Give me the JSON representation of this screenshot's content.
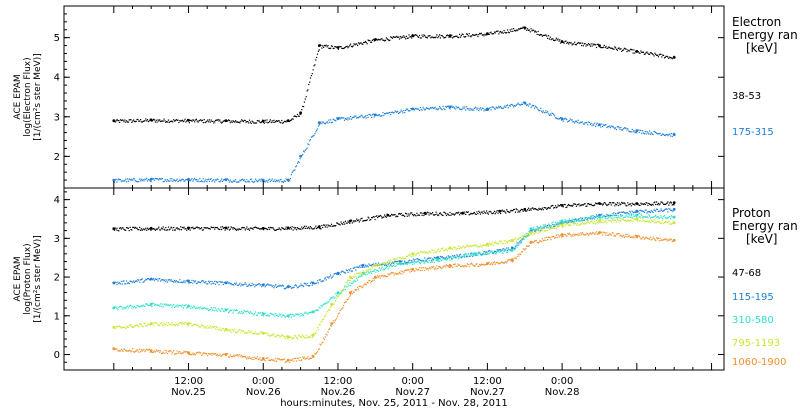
{
  "chart_data": [
    {
      "type": "scatter",
      "panel": "electron",
      "ylabel_lines": [
        "ACE EPAM",
        "log(Electron Flux)",
        "[1/(cm²s ster MeV)]"
      ],
      "y_ticks": [
        "2",
        "3",
        "4",
        "5"
      ],
      "ylim": [
        1.2,
        5.8
      ],
      "legend": {
        "title_lines": [
          "Electron",
          "Energy ran",
          "[keV]"
        ],
        "placement": "right"
      },
      "series": [
        {
          "name": "38-53",
          "color": "#000000",
          "x_hours": [
            0,
            6,
            12,
            18,
            24,
            28,
            30,
            33,
            36,
            42,
            48,
            54,
            60,
            66,
            72,
            78,
            84,
            90
          ],
          "values": [
            2.9,
            2.92,
            2.91,
            2.9,
            2.89,
            2.9,
            3.1,
            4.8,
            4.75,
            4.95,
            5.05,
            5.05,
            5.1,
            5.25,
            4.9,
            4.8,
            4.65,
            4.5
          ]
        },
        {
          "name": "175-315",
          "color": "#1e7fd6",
          "x_hours": [
            0,
            6,
            12,
            18,
            24,
            28,
            30,
            33,
            36,
            42,
            48,
            54,
            60,
            66,
            72,
            78,
            84,
            90
          ],
          "values": [
            1.4,
            1.42,
            1.42,
            1.41,
            1.4,
            1.4,
            2.0,
            2.85,
            2.95,
            3.05,
            3.2,
            3.25,
            3.2,
            3.35,
            2.95,
            2.8,
            2.65,
            2.55
          ]
        }
      ]
    },
    {
      "type": "scatter",
      "panel": "proton",
      "ylabel_lines": [
        "ACE EPAM",
        "log(Proton Flux)",
        "[1/(cm²s ster MeV)]"
      ],
      "y_ticks": [
        "0",
        "1",
        "2",
        "3",
        "4"
      ],
      "ylim": [
        -0.4,
        4.3
      ],
      "legend": {
        "title_lines": [
          "Proton",
          "Energy ran",
          "[keV]"
        ],
        "placement": "right"
      },
      "series": [
        {
          "name": "47-68",
          "color": "#000000",
          "x_hours": [
            0,
            6,
            12,
            18,
            24,
            28,
            33,
            38,
            44,
            50,
            56,
            62,
            66,
            72,
            78,
            84,
            90
          ],
          "values": [
            3.25,
            3.26,
            3.27,
            3.27,
            3.26,
            3.27,
            3.3,
            3.45,
            3.6,
            3.65,
            3.65,
            3.7,
            3.75,
            3.85,
            3.9,
            3.9,
            3.92
          ]
        },
        {
          "name": "115-195",
          "color": "#1e7fd6",
          "x_hours": [
            0,
            6,
            12,
            18,
            24,
            28,
            32,
            36,
            40,
            46,
            52,
            58,
            64,
            67,
            72,
            78,
            84,
            90
          ],
          "values": [
            1.85,
            1.95,
            1.9,
            1.85,
            1.8,
            1.75,
            1.85,
            2.1,
            2.3,
            2.4,
            2.5,
            2.6,
            2.75,
            3.2,
            3.4,
            3.6,
            3.7,
            3.75
          ]
        },
        {
          "name": "310-580",
          "color": "#2fe0c8",
          "x_hours": [
            0,
            6,
            12,
            18,
            24,
            28,
            32,
            36,
            40,
            46,
            52,
            58,
            64,
            67,
            72,
            78,
            84,
            90
          ],
          "values": [
            1.2,
            1.3,
            1.25,
            1.15,
            1.05,
            1.0,
            1.1,
            1.6,
            2.1,
            2.35,
            2.45,
            2.6,
            2.7,
            3.25,
            3.45,
            3.55,
            3.6,
            3.55
          ]
        },
        {
          "name": "795-1193",
          "color": "#c8e632",
          "x_hours": [
            0,
            6,
            12,
            18,
            24,
            28,
            32,
            35,
            38,
            42,
            48,
            54,
            60,
            64,
            67,
            72,
            78,
            84,
            90
          ],
          "values": [
            0.7,
            0.8,
            0.8,
            0.65,
            0.55,
            0.45,
            0.5,
            1.3,
            2.0,
            2.3,
            2.6,
            2.75,
            2.85,
            2.95,
            3.15,
            3.35,
            3.45,
            3.5,
            3.4
          ]
        },
        {
          "name": "1060-1900",
          "color": "#f0902a",
          "x_hours": [
            0,
            6,
            12,
            18,
            24,
            28,
            32,
            35,
            38,
            42,
            48,
            54,
            60,
            64,
            67,
            72,
            78,
            84,
            90
          ],
          "values": [
            0.15,
            0.1,
            0.05,
            0.0,
            -0.1,
            -0.15,
            -0.05,
            0.8,
            1.6,
            2.0,
            2.2,
            2.3,
            2.35,
            2.45,
            2.9,
            3.1,
            3.15,
            3.05,
            2.95
          ]
        }
      ]
    }
  ],
  "x_axis": {
    "title": "hours:minutes, Nov. 25, 2011 - Nov. 28, 2011",
    "xlim_hours": [
      -8,
      98
    ],
    "ticks": [
      {
        "hour": 12,
        "time": "12:00",
        "date": "Nov.25"
      },
      {
        "hour": 24,
        "time": "0:00",
        "date": "Nov.26"
      },
      {
        "hour": 36,
        "time": "12:00",
        "date": "Nov.26"
      },
      {
        "hour": 48,
        "time": "0:00",
        "date": "Nov.27"
      },
      {
        "hour": 60,
        "time": "12:00",
        "date": "Nov.27"
      },
      {
        "hour": 72,
        "time": "0:00",
        "date": "Nov.28"
      }
    ]
  }
}
